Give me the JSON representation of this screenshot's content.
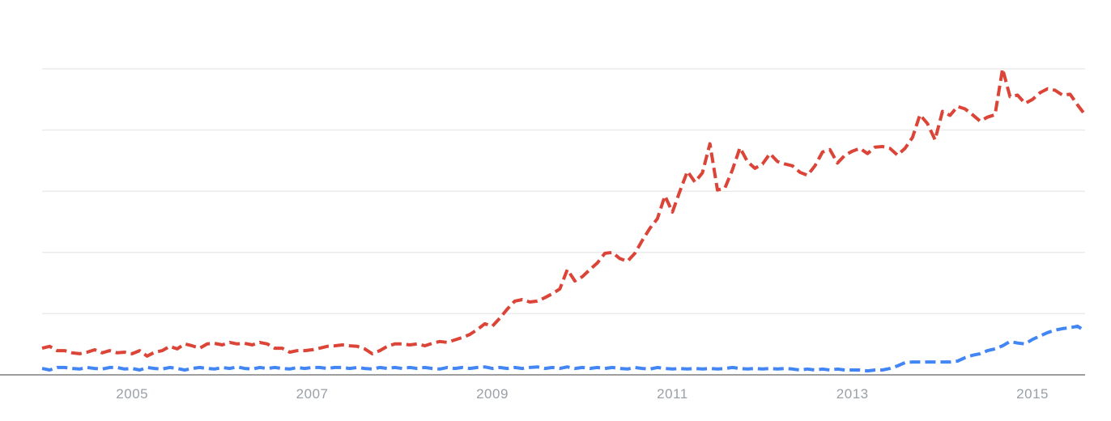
{
  "chart_data": {
    "type": "line",
    "title": "",
    "subtitle": "",
    "legend": "none",
    "grid": true,
    "x_axis": {
      "start_month": "2004-01",
      "end_month": "2015-08",
      "tick_labels": [
        "2005",
        "2007",
        "2009",
        "2011",
        "2013",
        "2015"
      ],
      "tick_month_indices": [
        12,
        36,
        60,
        84,
        108,
        132
      ]
    },
    "y_axis": {
      "min": 0,
      "max": 100,
      "gridline_values": [
        20,
        40,
        60,
        80,
        100
      ],
      "tick_labels_visible": false
    },
    "series": [
      {
        "name": "red-series",
        "color": "#db4437",
        "line_style": "dashed",
        "values": [
          8.7,
          9.3,
          7.9,
          7.9,
          7.2,
          6.9,
          7.4,
          8.2,
          7.2,
          7.9,
          7.2,
          7.4,
          6.9,
          7.9,
          6.1,
          7.4,
          7.9,
          9.3,
          8.5,
          10.1,
          9.5,
          8.7,
          10.1,
          10.3,
          9.8,
          10.6,
          10.1,
          10.3,
          9.8,
          10.6,
          10.1,
          8.7,
          8.7,
          7.4,
          7.9,
          7.9,
          8.2,
          8.7,
          9.3,
          9.5,
          9.8,
          9.5,
          9.3,
          8.5,
          6.9,
          7.9,
          9.3,
          10.1,
          10.1,
          9.8,
          10.1,
          9.5,
          10.3,
          10.9,
          10.6,
          11.4,
          12.2,
          13.2,
          14.8,
          16.7,
          15.9,
          18.5,
          21.5,
          24.1,
          24.6,
          23.8,
          24.1,
          25.2,
          26.5,
          28.1,
          34.4,
          30.7,
          32.1,
          34.4,
          36.6,
          39.7,
          40.0,
          38.0,
          37.1,
          39.7,
          44.0,
          47.9,
          51.0,
          58.5,
          53.2,
          60.0,
          66.5,
          63.0,
          66.0,
          75.5,
          60.4,
          61.0,
          67.0,
          74.2,
          69.7,
          67.5,
          68.9,
          72.3,
          69.7,
          68.9,
          68.3,
          66.2,
          65.2,
          68.3,
          72.8,
          73.6,
          69.2,
          71.8,
          73.1,
          74.0,
          72.3,
          74.4,
          74.6,
          74.0,
          71.8,
          74.0,
          77.6,
          85.0,
          82.1,
          76.8,
          86.1,
          84.8,
          87.7,
          86.9,
          85.0,
          82.9,
          84.2,
          85.0,
          100.0,
          90.9,
          91.4,
          88.7,
          90.0,
          92.2,
          93.5,
          93.0,
          91.4,
          91.7,
          88.2,
          85.0
        ]
      },
      {
        "name": "blue-series",
        "color": "#4285f4",
        "line_style": "dashed",
        "values": [
          2.1,
          1.6,
          2.4,
          2.4,
          2.1,
          1.9,
          2.4,
          2.1,
          1.9,
          2.4,
          2.4,
          1.9,
          2.1,
          1.6,
          2.4,
          2.1,
          1.9,
          2.4,
          2.1,
          1.6,
          2.1,
          2.4,
          2.1,
          1.9,
          2.4,
          2.1,
          2.6,
          2.1,
          1.9,
          2.4,
          2.1,
          2.4,
          2.1,
          1.9,
          2.4,
          2.1,
          2.4,
          2.4,
          2.1,
          2.4,
          2.4,
          2.1,
          2.4,
          2.1,
          1.9,
          2.4,
          2.1,
          2.4,
          2.1,
          2.4,
          2.1,
          2.4,
          2.1,
          1.9,
          2.4,
          2.1,
          2.4,
          2.1,
          2.4,
          2.6,
          2.1,
          2.4,
          2.1,
          2.4,
          2.1,
          2.4,
          2.6,
          2.1,
          2.4,
          2.1,
          2.6,
          2.1,
          2.4,
          2.1,
          2.4,
          2.1,
          2.4,
          2.1,
          1.9,
          2.4,
          2.1,
          1.9,
          2.4,
          2.1,
          1.9,
          2.1,
          1.9,
          2.1,
          1.9,
          2.1,
          1.9,
          2.1,
          2.4,
          2.1,
          1.9,
          2.1,
          1.9,
          2.1,
          1.9,
          2.1,
          1.9,
          1.6,
          1.9,
          1.6,
          1.9,
          1.6,
          1.9,
          1.6,
          1.6,
          1.6,
          1.3,
          1.6,
          1.6,
          2.1,
          2.9,
          4.0,
          4.2,
          4.2,
          4.2,
          4.2,
          4.2,
          4.2,
          4.5,
          5.6,
          6.4,
          6.9,
          7.9,
          8.5,
          9.5,
          10.9,
          10.4,
          10.1,
          11.6,
          12.7,
          13.8,
          14.6,
          15.1,
          15.4,
          15.9,
          14.3
        ]
      }
    ],
    "colors": {
      "background": "#ffffff",
      "gridline": "#ebebeb",
      "axis_line": "#9e9e9e",
      "tick_label": "#9aa0a6"
    }
  }
}
